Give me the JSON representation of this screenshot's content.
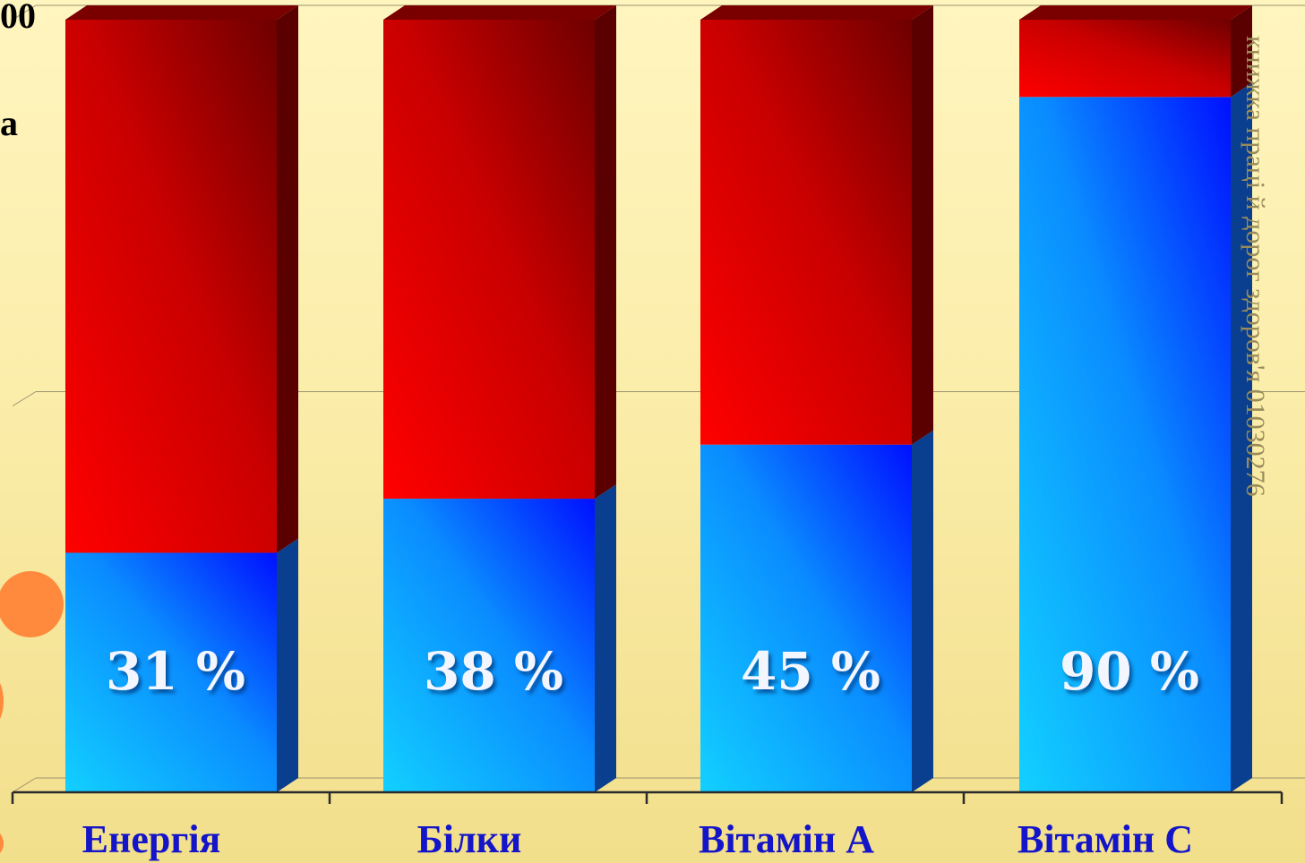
{
  "corner_labels": {
    "top": "00",
    "mid": "а"
  },
  "side_text": "книжка праці й дорог здоров'я 01030276",
  "colors": {
    "background_top": "#fff5bf",
    "background_bottom": "#f2df8c",
    "blue_series": "#0a8cff",
    "red_series": "#d60000",
    "category_label": "#1414c8",
    "value_label": "#f3f6ff",
    "decor_circle": "#ff8a3d"
  },
  "chart_data": {
    "type": "bar",
    "stacked": true,
    "categories": [
      "Енергія",
      "Білки",
      "Вітамін А",
      "Вітамін С"
    ],
    "series": [
      {
        "values": [
          31,
          38,
          45,
          90
        ]
      },
      {
        "values": [
          69,
          62,
          55,
          10
        ]
      }
    ],
    "data_labels": [
      "31 %",
      "38 %",
      "45 %",
      "90 %"
    ],
    "ylim": [
      0,
      100
    ],
    "grid": true,
    "legend": "none"
  }
}
